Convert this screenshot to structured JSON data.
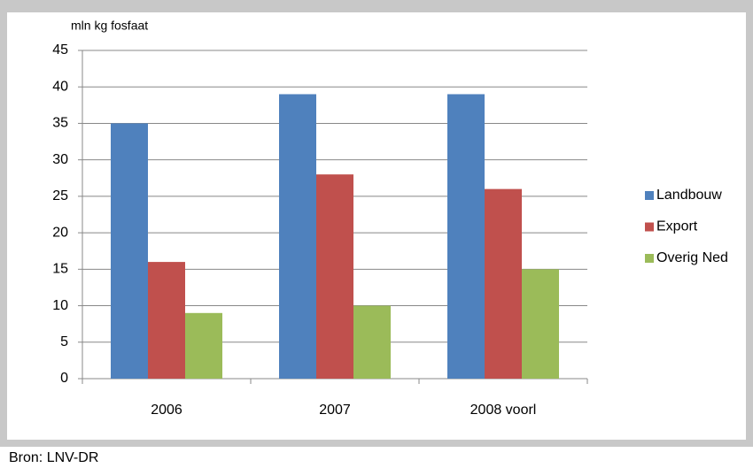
{
  "chart_data": {
    "type": "bar",
    "y_axis_label": "mln kg fosfaat",
    "categories": [
      "2006",
      "2007",
      "2008 voorl"
    ],
    "series": [
      {
        "name": "Landbouw",
        "color": "#4f81bd",
        "values": [
          35,
          39,
          39
        ]
      },
      {
        "name": "Export",
        "color": "#c0504d",
        "values": [
          16,
          28,
          26
        ]
      },
      {
        "name": "Overig Ned",
        "color": "#9bbb59",
        "values": [
          9,
          10,
          15
        ]
      }
    ],
    "ylim": [
      0,
      45
    ],
    "yticks": [
      0,
      5,
      10,
      15,
      20,
      25,
      30,
      35,
      40,
      45
    ],
    "grid": true,
    "legend": "right",
    "source": "Bron: LNV-DR"
  }
}
